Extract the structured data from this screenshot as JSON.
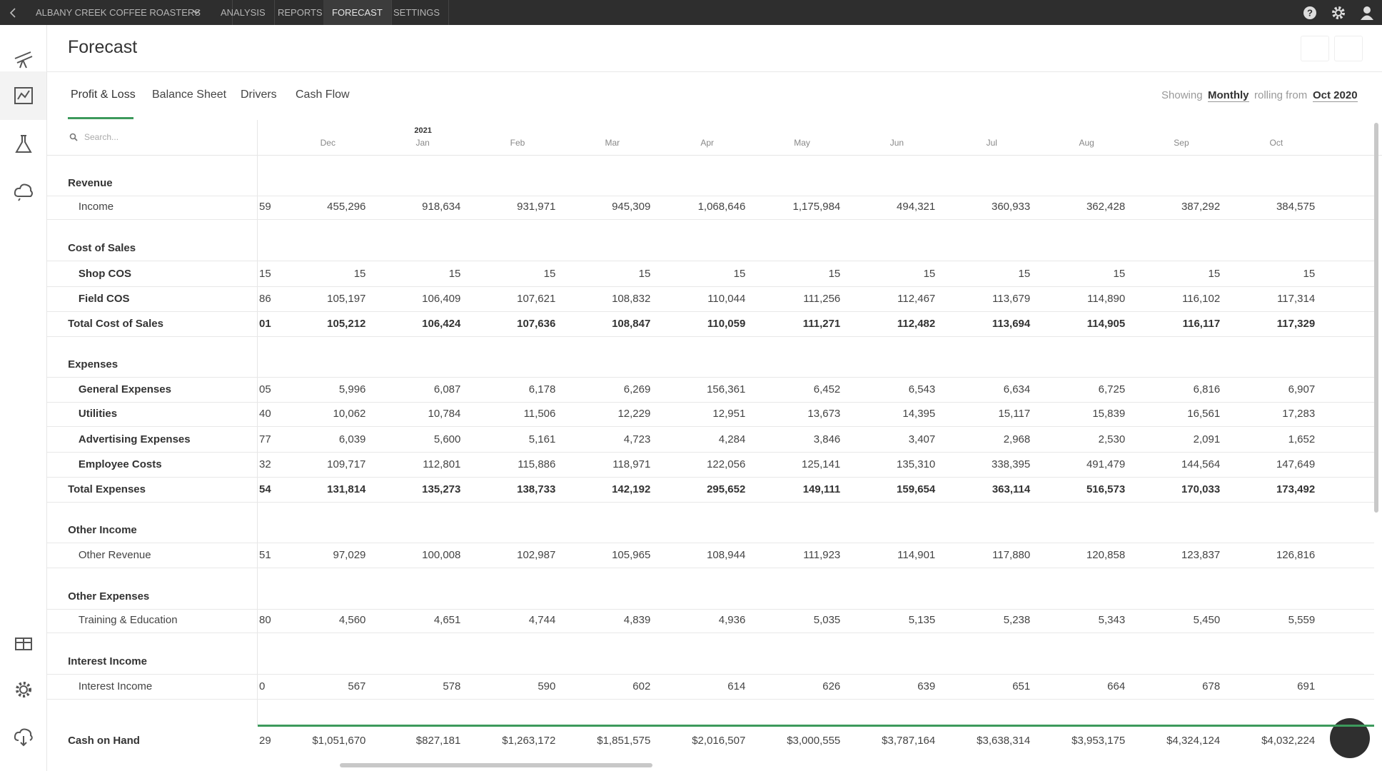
{
  "top_nav": {
    "company": "ALBANY CREEK COFFEE ROASTERS",
    "items": [
      "ANALYSIS",
      "REPORTS",
      "FORECAST",
      "SETTINGS"
    ]
  },
  "header": {
    "title": "Forecast"
  },
  "tabs": [
    "Profit & Loss",
    "Balance Sheet",
    "Drivers",
    "Cash Flow"
  ],
  "view": {
    "showing": "Showing",
    "period": "Monthly",
    "rolling_from": "rolling from",
    "start": "Oct 2020"
  },
  "table": {
    "search_placeholder": "Search...",
    "year": "2021",
    "months": [
      "Dec",
      "Jan",
      "Feb",
      "Mar",
      "Apr",
      "May",
      "Jun",
      "Jul",
      "Aug",
      "Sep",
      "Oct"
    ],
    "rows": [
      {
        "label": "Revenue"
      },
      {
        "label": "Income",
        "clipped": "59",
        "values": [
          "455,296",
          "918,634",
          "931,971",
          "945,309",
          "1,068,646",
          "1,175,984",
          "494,321",
          "360,933",
          "362,428",
          "387,292",
          "384,575"
        ]
      },
      {
        "label": "Cost of Sales"
      },
      {
        "label": "Shop COS",
        "clipped": "15",
        "values": [
          "15",
          "15",
          "15",
          "15",
          "15",
          "15",
          "15",
          "15",
          "15",
          "15",
          "15"
        ]
      },
      {
        "label": "Field COS",
        "clipped": "86",
        "values": [
          "105,197",
          "106,409",
          "107,621",
          "108,832",
          "110,044",
          "111,256",
          "112,467",
          "113,679",
          "114,890",
          "116,102",
          "117,314"
        ]
      },
      {
        "label": "Total Cost of Sales",
        "clipped": "01",
        "values": [
          "105,212",
          "106,424",
          "107,636",
          "108,847",
          "110,059",
          "111,271",
          "112,482",
          "113,694",
          "114,905",
          "116,117",
          "117,329"
        ]
      },
      {
        "label": "Expenses"
      },
      {
        "label": "General Expenses",
        "clipped": "05",
        "values": [
          "5,996",
          "6,087",
          "6,178",
          "6,269",
          "156,361",
          "6,452",
          "6,543",
          "6,634",
          "6,725",
          "6,816",
          "6,907"
        ]
      },
      {
        "label": "Utilities",
        "clipped": "40",
        "values": [
          "10,062",
          "10,784",
          "11,506",
          "12,229",
          "12,951",
          "13,673",
          "14,395",
          "15,117",
          "15,839",
          "16,561",
          "17,283"
        ]
      },
      {
        "label": "Advertising Expenses",
        "clipped": "77",
        "values": [
          "6,039",
          "5,600",
          "5,161",
          "4,723",
          "4,284",
          "3,846",
          "3,407",
          "2,968",
          "2,530",
          "2,091",
          "1,652"
        ]
      },
      {
        "label": "Employee Costs",
        "clipped": "32",
        "values": [
          "109,717",
          "112,801",
          "115,886",
          "118,971",
          "122,056",
          "125,141",
          "135,310",
          "338,395",
          "491,479",
          "144,564",
          "147,649"
        ]
      },
      {
        "label": "Total Expenses",
        "clipped": "54",
        "values": [
          "131,814",
          "135,273",
          "138,733",
          "142,192",
          "295,652",
          "149,111",
          "159,654",
          "363,114",
          "516,573",
          "170,033",
          "173,492"
        ]
      },
      {
        "label": "Other Income"
      },
      {
        "label": "Other Revenue",
        "clipped": "51",
        "values": [
          "97,029",
          "100,008",
          "102,987",
          "105,965",
          "108,944",
          "111,923",
          "114,901",
          "117,880",
          "120,858",
          "123,837",
          "126,816"
        ]
      },
      {
        "label": "Other Expenses"
      },
      {
        "label": "Training & Education",
        "clipped": "80",
        "values": [
          "4,560",
          "4,651",
          "4,744",
          "4,839",
          "4,936",
          "5,035",
          "5,135",
          "5,238",
          "5,343",
          "5,450",
          "5,559"
        ]
      },
      {
        "label": "Interest Income"
      },
      {
        "label": "Interest Income",
        "clipped": "0",
        "values": [
          "567",
          "578",
          "590",
          "602",
          "614",
          "626",
          "639",
          "651",
          "664",
          "678",
          "691"
        ]
      }
    ],
    "cash_on_hand": {
      "label": "Cash on Hand",
      "clipped": "29",
      "values": [
        "$1,051,670",
        "$827,181",
        "$1,263,172",
        "$1,851,575",
        "$2,016,507",
        "$3,000,555",
        "$3,787,164",
        "$3,638,314",
        "$3,953,175",
        "$4,324,124",
        "$4,032,224"
      ]
    }
  }
}
